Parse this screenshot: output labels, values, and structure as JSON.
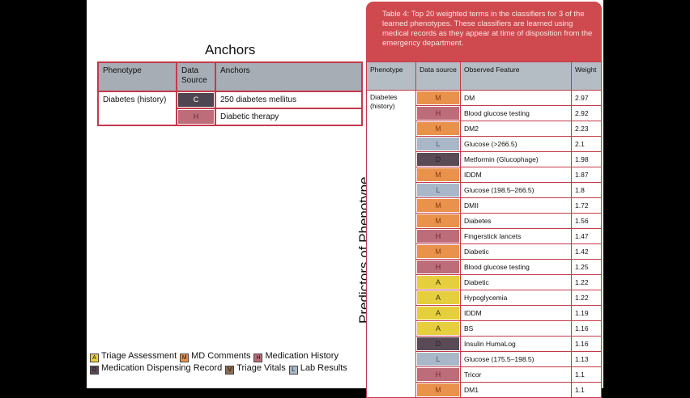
{
  "anchors_title": "Anchors",
  "vertical_label": "Predictors of Phenotype",
  "anchors_table": {
    "headers": [
      "Phenotype",
      "Data Source",
      "Anchors"
    ],
    "phenotype": "Diabetes (history)",
    "rows": [
      {
        "source": "C",
        "source_color": "#4d4550",
        "anchor": "250 diabetes mellitus"
      },
      {
        "source": "H",
        "source_color": "#bd6d79",
        "anchor": "Diabetic therapy"
      }
    ]
  },
  "caption": "Table 4: Top 20 weighted terms in the classifiers for 3 of the learned phenotypes. These classifiers are learned using medical records as they appear at time of disposition from the emergency department.",
  "predictors_table": {
    "headers": [
      "Phenotype",
      "Data source",
      "Observed Feature",
      "Weight"
    ],
    "phenotype": "Diabetes (history)",
    "rows": [
      {
        "source": "M",
        "feature": "DM",
        "weight": "2.97"
      },
      {
        "source": "H",
        "feature": "Blood glucose testing",
        "weight": "2.92"
      },
      {
        "source": "M",
        "feature": "DM2",
        "weight": "2.23"
      },
      {
        "source": "L",
        "feature": "Glucose (>266.5)",
        "weight": "2.1"
      },
      {
        "source": "D",
        "feature": "Metformin (Glucophage)",
        "weight": "1.98"
      },
      {
        "source": "M",
        "feature": "IDDM",
        "weight": "1.87"
      },
      {
        "source": "L",
        "feature": "Glucose (198.5–266.5)",
        "weight": "1.8"
      },
      {
        "source": "M",
        "feature": "DMII",
        "weight": "1.72"
      },
      {
        "source": "M",
        "feature": "Diabetes",
        "weight": "1.56"
      },
      {
        "source": "H",
        "feature": "Fingerstick lancets",
        "weight": "1.47"
      },
      {
        "source": "M",
        "feature": "Diabetic",
        "weight": "1.42"
      },
      {
        "source": "H",
        "feature": "Blood glucose testing",
        "weight": "1.25"
      },
      {
        "source": "A",
        "feature": "Diabetic",
        "weight": "1.22"
      },
      {
        "source": "A",
        "feature": "Hypoglycemia",
        "weight": "1.22"
      },
      {
        "source": "A",
        "feature": "IDDM",
        "weight": "1.19"
      },
      {
        "source": "A",
        "feature": "BS",
        "weight": "1.16"
      },
      {
        "source": "D",
        "feature": "Insulin HumaLog",
        "weight": "1.16"
      },
      {
        "source": "L",
        "feature": "Glucose (175.5–198.5)",
        "weight": "1.13"
      },
      {
        "source": "H",
        "feature": "Tricor",
        "weight": "1.1"
      },
      {
        "source": "M",
        "feature": "DM1",
        "weight": "1.1"
      }
    ]
  },
  "source_colors": {
    "M": "#e8924c",
    "H": "#bd6d79",
    "L": "#a9b8c9",
    "D": "#5a4a56",
    "A": "#e6cf3e",
    "C": "#4d4550"
  },
  "legend": [
    [
      {
        "code": "A",
        "label": "Triage Assessment",
        "color": "#e6cf3e"
      },
      {
        "code": "M",
        "label": "MD Comments",
        "color": "#e8924c"
      },
      {
        "code": "H",
        "label": "Medication History",
        "color": "#bd6d79"
      }
    ],
    [
      {
        "code": "D",
        "label": "Medication Dispensing Record",
        "color": "#5a4a56"
      },
      {
        "code": "V",
        "label": "Triage Vitals",
        "color": "#8a6a50"
      },
      {
        "code": "L",
        "label": "Lab Results",
        "color": "#a9b8c9"
      }
    ]
  ]
}
